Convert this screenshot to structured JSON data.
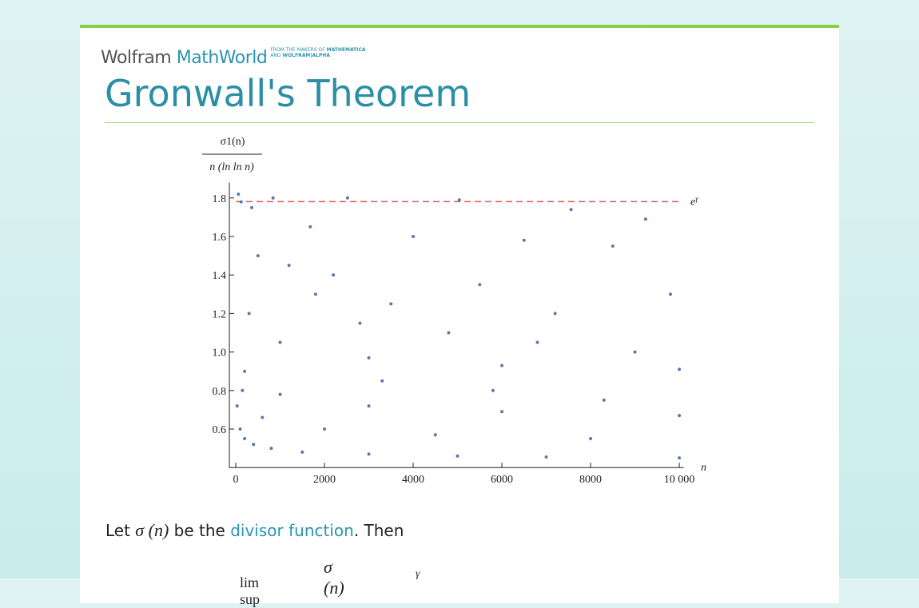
{
  "header": {
    "brand": "Wolfram",
    "product": "MathWorld",
    "tag_line1": "FROM THE MAKERS OF",
    "tag_product1": "MATHEMATICA",
    "tag_line2": "AND",
    "tag_product2": "WOLFRAM|ALPHA"
  },
  "title": "Gronwall's Theorem",
  "chart_data": {
    "type": "scatter",
    "ylabel_numerator": "σ1(n)",
    "ylabel_denominator": "n (ln ln n)",
    "xlabel": "n",
    "xlim": [
      -150,
      10100
    ],
    "ylim": [
      0.4,
      1.88
    ],
    "xticks": [
      0,
      2000,
      4000,
      6000,
      8000,
      {
        "value": 10000,
        "label": "10 000"
      }
    ],
    "yticks": [
      0.6,
      0.8,
      1.0,
      1.2,
      1.4,
      1.6,
      1.8
    ],
    "reference_line": {
      "value": 1.781,
      "label": "e",
      "label_sup": "γ",
      "color": "#e05555"
    },
    "x": [
      30,
      100,
      200,
      400,
      800,
      1500,
      3000,
      5000,
      7000,
      10000,
      200,
      1000,
      3000,
      6000,
      10000,
      300,
      1000,
      3000,
      6000,
      10000,
      150,
      600,
      2000,
      4500,
      8000,
      60,
      120,
      360,
      840,
      2520,
      5040,
      7560,
      9240,
      1680,
      4000,
      6500,
      8500,
      2200,
      5500,
      9800,
      3500,
      7200,
      1200,
      2800,
      4800,
      6800,
      9000,
      500,
      1800,
      3300,
      5800,
      8300
    ],
    "series": [
      {
        "color": "#5a78b0",
        "values": [
          0.72,
          0.6,
          0.55,
          0.52,
          0.5,
          0.48,
          0.47,
          0.46,
          0.455,
          0.45,
          0.9,
          0.78,
          0.72,
          0.69,
          0.67,
          1.2,
          1.05,
          0.97,
          0.93,
          0.91,
          0.8,
          0.66,
          0.6,
          0.57,
          0.55,
          1.82,
          1.78,
          1.75,
          1.8,
          1.8,
          1.79,
          1.74,
          1.69,
          1.65,
          1.6,
          1.58,
          1.55,
          1.4,
          1.35,
          1.3,
          1.25,
          1.2,
          1.45,
          1.15,
          1.1,
          1.05,
          1.0,
          1.5,
          1.3,
          0.85,
          0.8,
          0.75
        ]
      }
    ]
  },
  "text": {
    "let": "Let",
    "sigma_n": "σ (n)",
    "be_the": "be the",
    "link": "divisor function",
    "then": ". Then",
    "formula_limsup": "lim sup",
    "formula_numerator": "σ (n)",
    "formula_rhs": "γ"
  }
}
